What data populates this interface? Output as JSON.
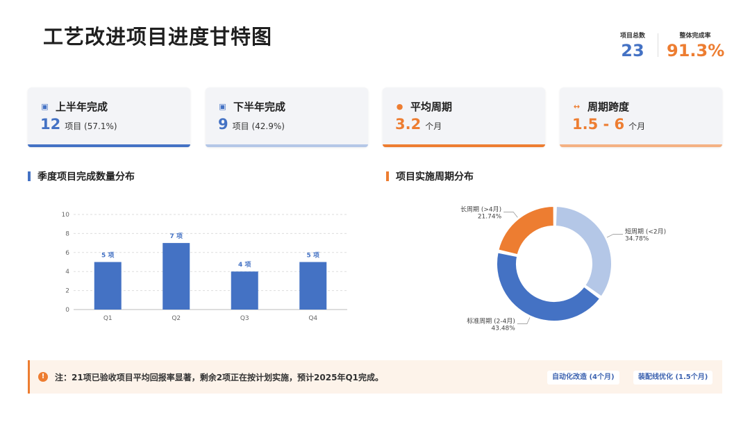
{
  "header": {
    "title": "工艺改进项目进度甘特图",
    "kpis": [
      {
        "label": "项目总数",
        "value": "23"
      },
      {
        "label": "整体完成率",
        "value": "91.3%"
      }
    ]
  },
  "cards": [
    {
      "title": "上半年完成",
      "value": "12",
      "unit": "项目 (57.1%)",
      "icon": "calendar-check-icon",
      "accent": "#4472c4"
    },
    {
      "title": "下半年完成",
      "value": "9",
      "unit": "项目 (42.9%)",
      "icon": "calendar-plus-icon",
      "accent": "#b4c7e7"
    },
    {
      "title": "平均周期",
      "value": "3.2",
      "unit": "个月",
      "icon": "stopwatch-icon",
      "accent": "#ed7d31"
    },
    {
      "title": "周期跨度",
      "value": "1.5 - 6",
      "unit": "个月",
      "icon": "arrows-horizontal-icon",
      "accent": "#f4b183"
    }
  ],
  "sections": {
    "bar_title": "季度项目完成数量分布",
    "donut_title": "项目实施周期分布"
  },
  "chart_data": [
    {
      "type": "bar",
      "categories": [
        "Q1",
        "Q2",
        "Q3",
        "Q4"
      ],
      "values": [
        5,
        7,
        4,
        5
      ],
      "data_labels": [
        "5 项",
        "7 项",
        "4 项",
        "5 项"
      ],
      "yticks": [
        "0",
        "2",
        "4",
        "6",
        "8",
        "10"
      ],
      "ylim": [
        0,
        10
      ],
      "grid": true,
      "color": "#4472c4"
    },
    {
      "type": "pie",
      "donut": true,
      "slices": [
        {
          "name": "短周期 (<2月)",
          "pct_label": "34.78%",
          "value": 34.78,
          "color": "#b4c7e7"
        },
        {
          "name": "标准周期 (2-4月)",
          "pct_label": "43.48%",
          "value": 43.48,
          "color": "#4472c4"
        },
        {
          "name": "长周期 (>4月)",
          "pct_label": "21.74%",
          "value": 21.74,
          "color": "#ed7d31"
        }
      ]
    }
  ],
  "note": {
    "text": "注：21项已验收项目平均回报率显著，剩余2项正在按计划实施，预计2025年Q1完成。",
    "tags": [
      "自动化改造 (4个月)",
      "装配线优化 (1.5个月)"
    ]
  }
}
